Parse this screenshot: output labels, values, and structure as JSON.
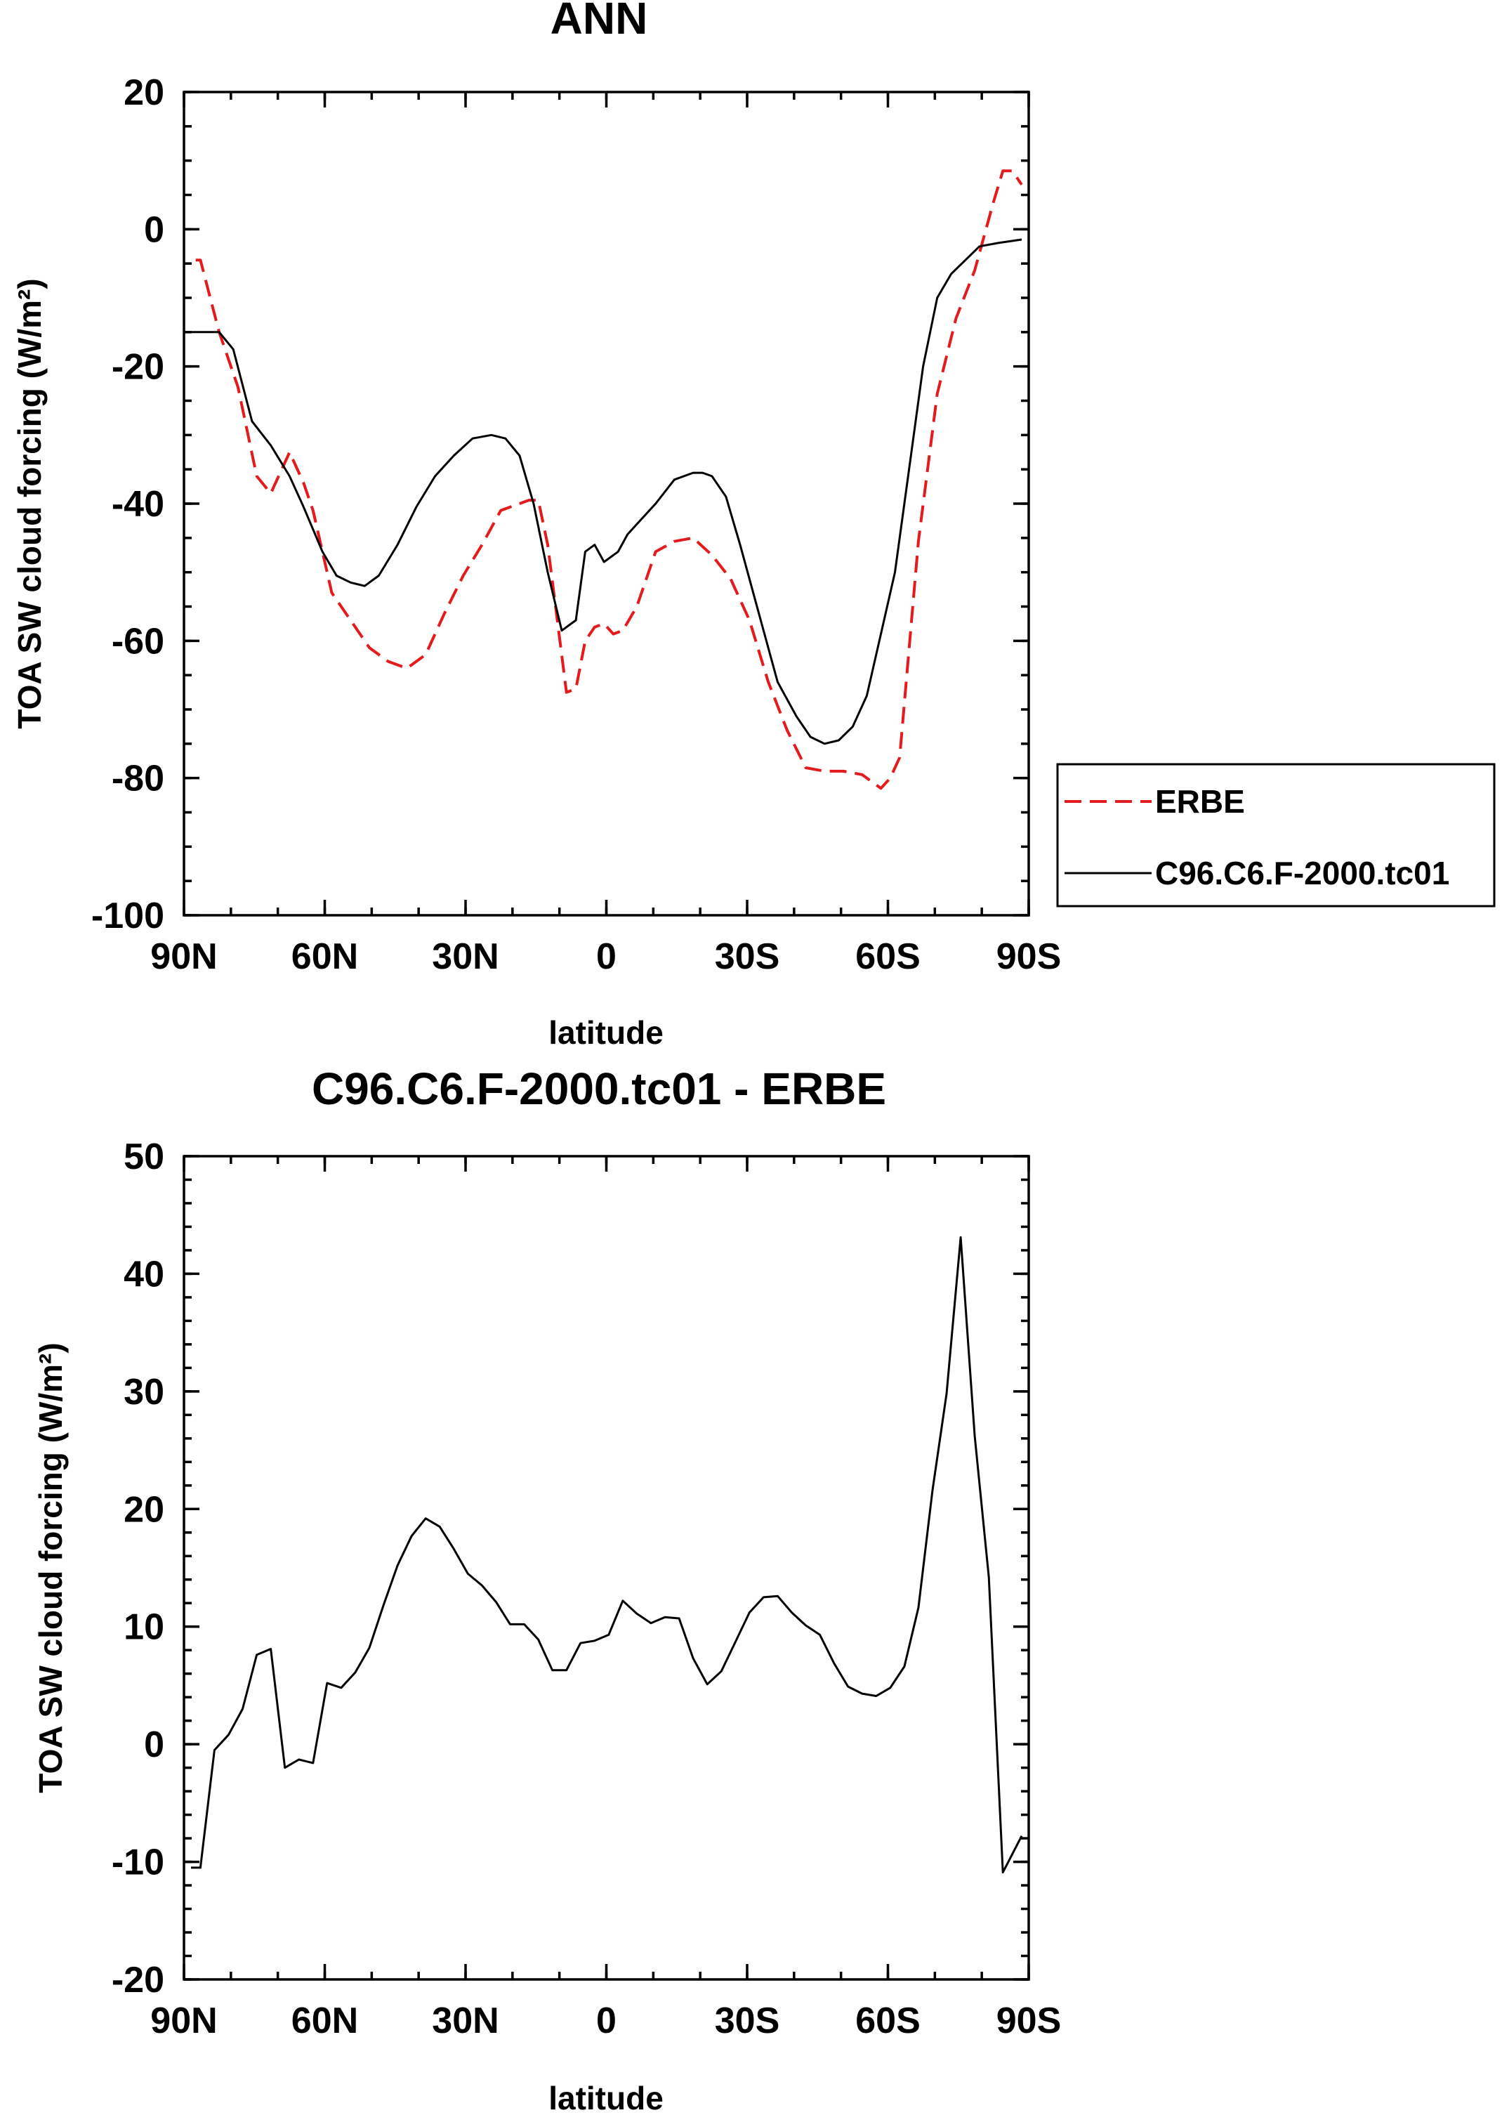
{
  "chart_data": [
    {
      "type": "line",
      "title": "ANN",
      "xlabel": "latitude",
      "ylabel": "TOA SW cloud forcing (W/m²)",
      "ylim": [
        -100,
        20
      ],
      "y_major_ticks": [
        "20",
        "0",
        "-20",
        "-40",
        "-60",
        "-80",
        "-100"
      ],
      "xlim": [
        90,
        -90
      ],
      "x_tick_labels": [
        "90N",
        "60N",
        "30N",
        "0",
        "30S",
        "60S",
        "90S"
      ],
      "grid": false,
      "legend_position": "right",
      "series": [
        {
          "name": "ERBE",
          "color": "#e41a1c",
          "style": "dashed",
          "x": [
            87.5,
            86.5,
            82.5,
            78.5,
            74.5,
            71.5,
            67.5,
            64.5,
            62.5,
            60.5,
            58.5,
            54.5,
            50.5,
            46.5,
            42.5,
            38.5,
            34.5,
            30.5,
            26.5,
            22.5,
            18.5,
            16.5,
            14.5,
            12.5,
            8.5,
            6.5,
            4.5,
            2.5,
            0.5,
            -1.5,
            -3.5,
            -6.5,
            -10.5,
            -14.5,
            -18.5,
            -22.5,
            -26.5,
            -30.5,
            -34.5,
            -38.5,
            -42.5,
            -46.5,
            -50.5,
            -54.5,
            -58.5,
            -60.5,
            -62.5,
            -66.5,
            -70.5,
            -74.5,
            -78.5,
            -82.5,
            -84.5,
            -86.5,
            -88.5
          ],
          "y": [
            -4.5,
            -4.5,
            -15,
            -23,
            -36,
            -38.5,
            -32.5,
            -37,
            -41,
            -47,
            -53,
            -57,
            -61,
            -63,
            -64,
            -62,
            -56,
            -50.5,
            -46,
            -41,
            -40,
            -39.5,
            -39.5,
            -46,
            -67.5,
            -67,
            -60,
            -58,
            -57.5,
            -59,
            -58.5,
            -55,
            -47,
            -45.5,
            -45,
            -47.5,
            -51,
            -57,
            -66,
            -73,
            -78.5,
            -79,
            -79,
            -79.5,
            -81.5,
            -80,
            -77,
            -45.5,
            -24,
            -13,
            -6,
            4,
            8.5,
            8.5,
            6.5
          ]
        },
        {
          "name": "C96.C6.F-2000.tc01",
          "color": "#000000",
          "style": "solid",
          "x": [
            88.5,
            86.5,
            82.5,
            79.5,
            75.5,
            71.5,
            67.5,
            64.5,
            60.5,
            57.5,
            54.5,
            51.5,
            48.5,
            44.5,
            40.5,
            36.5,
            32.5,
            28.5,
            24.5,
            21.5,
            18.5,
            15.5,
            12.5,
            9.5,
            6.5,
            4.5,
            2.5,
            0.5,
            -2.5,
            -4.5,
            -6.5,
            -10.5,
            -14.5,
            -18.5,
            -20.5,
            -22.5,
            -25.5,
            -28.5,
            -32.5,
            -36.5,
            -40.5,
            -43.5,
            -46.5,
            -49.5,
            -52.5,
            -55.5,
            -58.5,
            -61.5,
            -64.5,
            -67.5,
            -70.5,
            -73.5,
            -76.5,
            -79.5,
            -83.5,
            -88.5
          ],
          "y": [
            -15,
            -15,
            -15,
            -17.5,
            -28,
            -31.5,
            -36,
            -40.5,
            -47,
            -50.5,
            -51.5,
            -52,
            -50.5,
            -46,
            -40.5,
            -36,
            -33,
            -30.5,
            -30,
            -30.5,
            -33,
            -40,
            -50,
            -58.5,
            -57,
            -47,
            -46,
            -48.5,
            -47,
            -44.5,
            -43,
            -40,
            -36.5,
            -35.5,
            -35.5,
            -36,
            -39,
            -46,
            -56,
            -66,
            -71,
            -74,
            -75,
            -74.5,
            -72.5,
            -68,
            -59,
            -50,
            -35,
            -20,
            -10,
            -6.5,
            -4.5,
            -2.5,
            -2,
            -1.5
          ]
        }
      ]
    },
    {
      "type": "line",
      "title": "C96.C6.F-2000.tc01 - ERBE",
      "xlabel": "latitude",
      "ylabel": "TOA SW cloud forcing (W/m²)",
      "ylim": [
        -20,
        50
      ],
      "y_major_ticks": [
        "50",
        "40",
        "30",
        "20",
        "10",
        "0",
        "-10",
        "-20"
      ],
      "xlim": [
        90,
        -90
      ],
      "x_tick_labels": [
        "90N",
        "60N",
        "30N",
        "0",
        "30S",
        "60S",
        "90S"
      ],
      "grid": false,
      "series": [
        {
          "color": "#000000",
          "style": "solid",
          "x": [
            88.5,
            86.5,
            83.5,
            80.5,
            77.5,
            74.5,
            71.5,
            68.5,
            65.5,
            62.5,
            59.5,
            56.5,
            53.5,
            50.5,
            47.5,
            44.5,
            41.5,
            38.5,
            35.5,
            32.5,
            29.5,
            26.5,
            23.5,
            20.5,
            17.5,
            14.5,
            11.5,
            8.5,
            5.5,
            2.5,
            -0.5,
            -3.5,
            -6.5,
            -9.5,
            -12.5,
            -15.5,
            -18.5,
            -21.5,
            -24.5,
            -27.5,
            -30.5,
            -33.5,
            -36.5,
            -39.5,
            -42.5,
            -45.5,
            -48.5,
            -51.5,
            -54.5,
            -57.5,
            -60.5,
            -63.5,
            -66.5,
            -69.5,
            -72.5,
            -75.5,
            -78.5,
            -81.5,
            -84.5,
            -88.5
          ],
          "y": [
            -10.5,
            -10.5,
            -0.5,
            0.8,
            3,
            7.6,
            8.1,
            -2,
            -1.3,
            -1.6,
            5.2,
            4.8,
            6.1,
            8.2,
            11.8,
            15.2,
            17.7,
            19.2,
            18.5,
            16.6,
            14.5,
            13.5,
            12.1,
            10.2,
            10.2,
            8.9,
            6.3,
            6.3,
            8.6,
            8.8,
            9.3,
            12.2,
            11.1,
            10.3,
            10.8,
            10.7,
            7.3,
            5.1,
            6.2,
            8.7,
            11.2,
            12.5,
            12.6,
            11.2,
            10.1,
            9.3,
            6.9,
            4.9,
            4.3,
            4.1,
            4.8,
            6.6,
            11.6,
            21.6,
            29.8,
            43.1,
            26.2,
            14.2,
            -10.9,
            -7.8
          ]
        }
      ]
    }
  ]
}
